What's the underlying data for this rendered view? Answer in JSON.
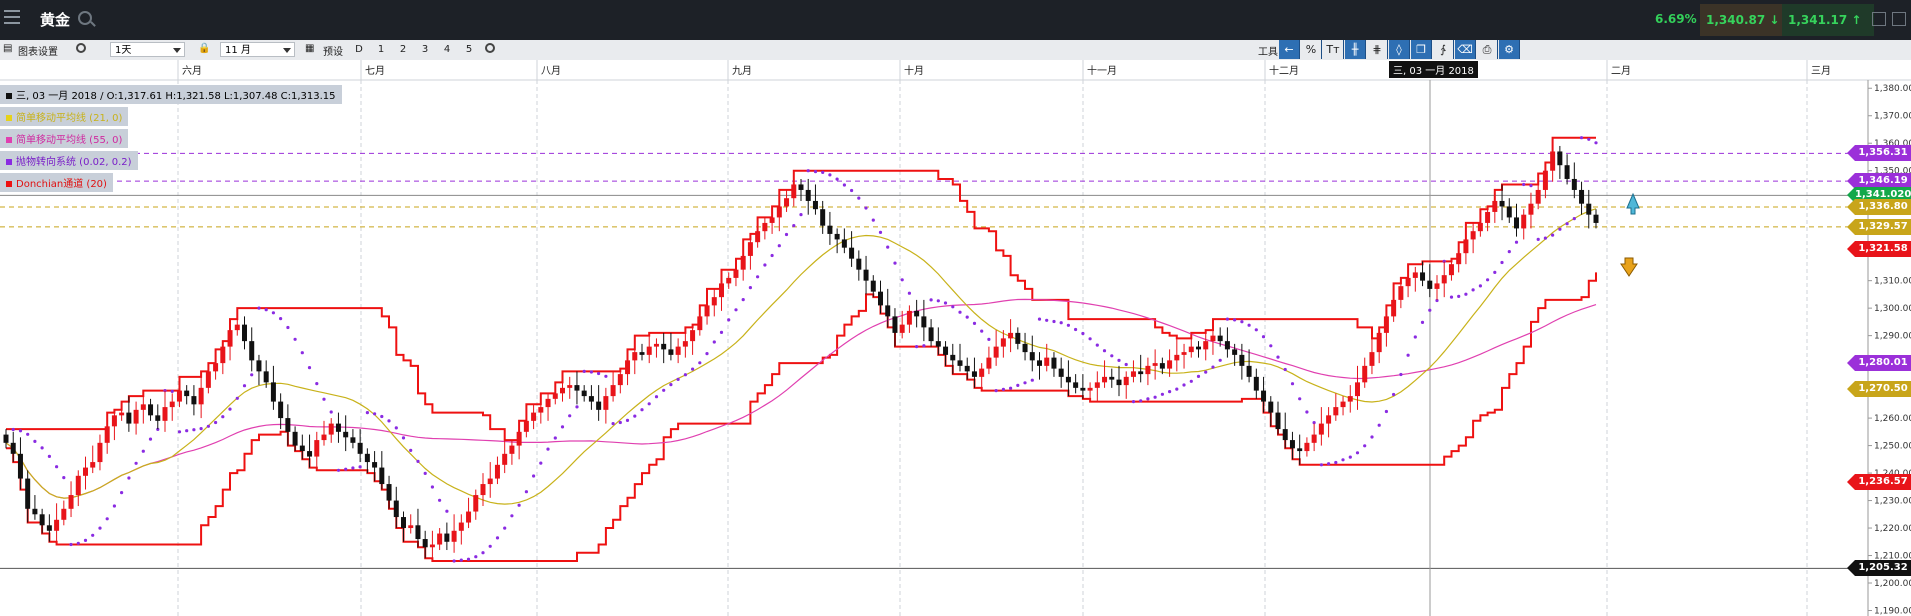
{
  "titlebar": {
    "instrument": "黄金",
    "change_pct": "6.69%",
    "bid": "1,340.87",
    "ask": "1,341.17"
  },
  "toolbar": {
    "chart_settings_label": "图表设置",
    "interval": "1天",
    "period": "11 月",
    "preset_label": "预设",
    "periods": [
      "D",
      "1",
      "2",
      "3",
      "4",
      "5"
    ],
    "tools_label": "工具",
    "percent_label": "%",
    "text_tool_label": "Tт"
  },
  "crosshair_date": "三, 03 一月 2018",
  "legend": {
    "ohlc": "三, 03 一月 2018 / O:1,317.61  H:1,321.58  L:1,307.48  C:1,313.15",
    "sma21": "简单移动平均线 (21, 0)",
    "sma55": "简单移动平均线 (55, 0)",
    "psar": "抛物转向系统 (0.02, 0.2)",
    "donchian": "Donchian通道 (20)"
  },
  "colors": {
    "up": "#e8141a",
    "down": "#111111",
    "sma21": "#c8b21a",
    "sma55": "#e040b0",
    "psar": "#8a2be2",
    "donchian": "#ee1111",
    "accent": "#2e6fb3"
  },
  "chart_data": {
    "type": "candlestick",
    "x_months": [
      "六月",
      "七月",
      "八月",
      "九月",
      "十月",
      "十一月",
      "十二月",
      "二月",
      "三月"
    ],
    "y_ticks": [
      1190,
      1200,
      1210,
      1220,
      1230,
      1240,
      1250,
      1260,
      1270,
      1280,
      1290,
      1300,
      1310,
      1320,
      1330,
      1340,
      1350,
      1360,
      1370,
      1380
    ],
    "y_tick_labels": [
      "1,190.00",
      "1,200.00",
      "1,210.00",
      "1,220.00",
      "1,230.00",
      "1,240.00",
      "1,250.00",
      "1,260.00",
      "1,270.00",
      "1,280.00",
      "1,290.00",
      "1,300.00",
      "1,310.00",
      "1,320.00",
      "1,330.00",
      "1,340.00",
      "1,350.00",
      "1,360.00",
      "1,370.00",
      "1,380.00"
    ],
    "ylim": [
      1188,
      1383
    ],
    "closes": [
      1251,
      1247,
      1238,
      1227,
      1225,
      1221,
      1219,
      1223,
      1227,
      1232,
      1239,
      1242,
      1244,
      1251,
      1257,
      1261,
      1262,
      1258,
      1263,
      1265,
      1261,
      1259,
      1264,
      1266,
      1270,
      1268,
      1265,
      1271,
      1277,
      1280,
      1286,
      1292,
      1294,
      1288,
      1281,
      1277,
      1273,
      1266,
      1260,
      1255,
      1250,
      1248,
      1246,
      1252,
      1254,
      1258,
      1255,
      1253,
      1251,
      1247,
      1244,
      1242,
      1236,
      1230,
      1224,
      1220,
      1221,
      1216,
      1213,
      1214,
      1218,
      1215,
      1219,
      1222,
      1226,
      1232,
      1236,
      1238,
      1243,
      1247,
      1250,
      1255,
      1259,
      1262,
      1264,
      1267,
      1269,
      1271,
      1272,
      1270,
      1268,
      1266,
      1263,
      1268,
      1272,
      1276,
      1281,
      1284,
      1283,
      1286,
      1287,
      1285,
      1283,
      1286,
      1288,
      1292,
      1297,
      1301,
      1304,
      1309,
      1311,
      1314,
      1319,
      1324,
      1328,
      1331,
      1333,
      1337,
      1340,
      1345,
      1343,
      1339,
      1336,
      1330,
      1327,
      1325,
      1322,
      1318,
      1314,
      1310,
      1306,
      1301,
      1297,
      1291,
      1294,
      1299,
      1297,
      1293,
      1288,
      1286,
      1283,
      1281,
      1279,
      1277,
      1275,
      1278,
      1282,
      1286,
      1289,
      1291,
      1287,
      1284,
      1281,
      1279,
      1282,
      1278,
      1275,
      1273,
      1271,
      1270,
      1271,
      1273,
      1275,
      1274,
      1272,
      1275,
      1277,
      1276,
      1279,
      1280,
      1278,
      1281,
      1283,
      1284,
      1286,
      1285,
      1288,
      1290,
      1288,
      1285,
      1283,
      1279,
      1275,
      1270,
      1266,
      1262,
      1256,
      1252,
      1249,
      1248,
      1251,
      1254,
      1258,
      1261,
      1264,
      1266,
      1268,
      1273,
      1279,
      1284,
      1291,
      1297,
      1303,
      1308,
      1311,
      1313,
      1310,
      1307,
      1309,
      1312,
      1316,
      1320,
      1325,
      1328,
      1331,
      1335,
      1339,
      1337,
      1333,
      1329,
      1334,
      1338,
      1343,
      1350,
      1357,
      1352,
      1347,
      1343,
      1338,
      1334,
      1331
    ],
    "sma21_last": 1329.57,
    "sma55_last": 1270.5,
    "psar_last": 1329.0,
    "donchian_upper_last": 1365.0,
    "donchian_lower_last": 1305.0,
    "price_tags": [
      {
        "label": "1,356.31",
        "value": 1356.31,
        "color": "#9b30d9"
      },
      {
        "label": "1,346.19",
        "value": 1346.19,
        "color": "#9b30d9"
      },
      {
        "label": "1,341.020",
        "value": 1341.02,
        "color": "#13a84a"
      },
      {
        "label": "1,336.80",
        "value": 1336.8,
        "color": "#c8a51a"
      },
      {
        "label": "1,329.57",
        "value": 1329.57,
        "color": "#c8a51a"
      },
      {
        "label": "1,321.58",
        "value": 1321.58,
        "color": "#e8141a"
      },
      {
        "label": "1,280.01",
        "value": 1280.01,
        "color": "#9b30d9"
      },
      {
        "label": "1,270.50",
        "value": 1270.5,
        "color": "#c8a51a"
      },
      {
        "label": "1,236.57",
        "value": 1236.57,
        "color": "#e8141a"
      },
      {
        "label": "1,205.32",
        "value": 1205.32,
        "color": "#111111"
      }
    ],
    "hlines": [
      {
        "value": 1356.31,
        "color": "#9b30d9",
        "dash": true
      },
      {
        "value": 1346.19,
        "color": "#9b30d9",
        "dash": true
      },
      {
        "value": 1341.02,
        "color": "#888888",
        "dash": false
      },
      {
        "value": 1336.8,
        "color": "#c8a51a",
        "dash": true
      },
      {
        "value": 1329.57,
        "color": "#c8a51a",
        "dash": true
      },
      {
        "value": 1205.32,
        "color": "#555555",
        "dash": false
      }
    ],
    "grid": true
  }
}
